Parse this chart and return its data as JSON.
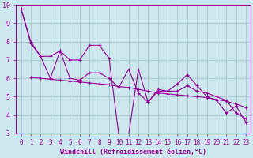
{
  "bg_color": "#cce8ee",
  "grid_color": "#aacccc",
  "line_color": "#990099",
  "marker_color": "#990099",
  "xlabel": "Windchill (Refroidissement éolien,°C)",
  "xlim": [
    -0.5,
    23.5
  ],
  "ylim": [
    3,
    10
  ],
  "xticks": [
    0,
    1,
    2,
    3,
    4,
    5,
    6,
    7,
    8,
    9,
    10,
    11,
    12,
    13,
    14,
    15,
    16,
    17,
    18,
    19,
    20,
    21,
    22,
    23
  ],
  "yticks": [
    3,
    4,
    5,
    6,
    7,
    8,
    9,
    10
  ],
  "series": [
    {
      "x": [
        0,
        1,
        2,
        3,
        4,
        5,
        6,
        7,
        8,
        9,
        10,
        11,
        12,
        13,
        14,
        15,
        16,
        17,
        18,
        19,
        20,
        21,
        22,
        23
      ],
      "y": [
        9.8,
        7.9,
        7.2,
        7.2,
        7.5,
        7.0,
        7.0,
        7.8,
        7.8,
        7.1,
        2.9,
        2.9,
        6.5,
        4.7,
        5.4,
        5.3,
        5.7,
        6.2,
        5.6,
        5.0,
        4.8,
        4.1,
        4.5,
        3.6
      ]
    },
    {
      "x": [
        0,
        1,
        2,
        3,
        4,
        5,
        6,
        7,
        8,
        9,
        10,
        11,
        12,
        13,
        14,
        15,
        16,
        17,
        18,
        19,
        20,
        21,
        22,
        23
      ],
      "y": [
        9.8,
        8.0,
        7.2,
        6.0,
        7.5,
        6.0,
        5.9,
        6.3,
        6.3,
        6.0,
        5.5,
        6.5,
        5.2,
        4.7,
        5.3,
        5.3,
        5.3,
        5.6,
        5.3,
        5.2,
        5.0,
        4.8,
        4.1,
        3.8
      ]
    },
    {
      "x": [
        1,
        2,
        3,
        4,
        5,
        6,
        7,
        8,
        9,
        10,
        11,
        12,
        13,
        14,
        15,
        16,
        17,
        18,
        19,
        20,
        21,
        22,
        23
      ],
      "y": [
        6.05,
        6.0,
        5.95,
        5.9,
        5.85,
        5.8,
        5.75,
        5.7,
        5.65,
        5.55,
        5.5,
        5.4,
        5.3,
        5.2,
        5.15,
        5.1,
        5.05,
        5.0,
        4.95,
        4.85,
        4.75,
        4.6,
        4.4
      ]
    }
  ]
}
